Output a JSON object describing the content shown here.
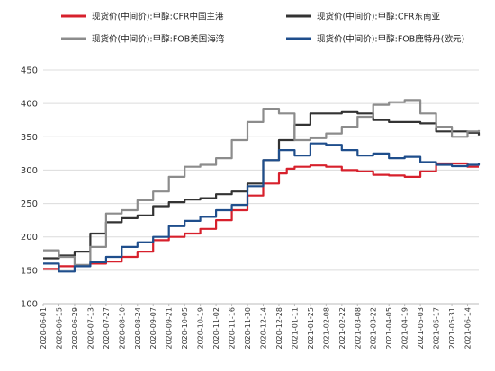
{
  "chart_data": {
    "type": "line",
    "title": "",
    "xlabel": "",
    "ylabel": "",
    "ylim": [
      100,
      450
    ],
    "yticks": [
      100,
      150,
      200,
      250,
      300,
      350,
      400,
      450
    ],
    "grid": "horizontal",
    "legend_position": "top",
    "x_tick_labels": [
      "2020-06-01",
      "2020-06-15",
      "2020-06-29",
      "2020-07-13",
      "2020-07-27",
      "2020-08-10",
      "2020-08-24",
      "2020-09-07",
      "2020-09-21",
      "2020-10-05",
      "2020-10-19",
      "2020-11-02",
      "2020-11-16",
      "2020-11-30",
      "2020-12-14",
      "2020-12-28",
      "2021-01-11",
      "2021-01-25",
      "2021-02-08",
      "2021-02-22",
      "2021-03-08",
      "2021-03-22",
      "2021-04-05",
      "2021-04-19",
      "2021-05-03",
      "2021-05-17",
      "2021-05-31",
      "2021-06-14"
    ],
    "x_range": [
      "2020-06-01",
      "2021-06-24"
    ],
    "series": [
      {
        "name": "现货价(中间价):甲醇:CFR中国主港",
        "color": "#d7202c",
        "points": [
          [
            "2020-06-01",
            152
          ],
          [
            "2020-06-15",
            156
          ],
          [
            "2020-06-29",
            157
          ],
          [
            "2020-07-13",
            160
          ],
          [
            "2020-07-27",
            163
          ],
          [
            "2020-08-10",
            170
          ],
          [
            "2020-08-24",
            178
          ],
          [
            "2020-09-07",
            195
          ],
          [
            "2020-09-21",
            200
          ],
          [
            "2020-10-05",
            205
          ],
          [
            "2020-10-19",
            212
          ],
          [
            "2020-11-02",
            225
          ],
          [
            "2020-11-16",
            240
          ],
          [
            "2020-11-30",
            262
          ],
          [
            "2020-12-14",
            280
          ],
          [
            "2020-12-28",
            295
          ],
          [
            "2021-01-04",
            302
          ],
          [
            "2021-01-11",
            305
          ],
          [
            "2021-01-25",
            307
          ],
          [
            "2021-02-08",
            305
          ],
          [
            "2021-02-22",
            300
          ],
          [
            "2021-03-08",
            298
          ],
          [
            "2021-03-22",
            293
          ],
          [
            "2021-04-05",
            292
          ],
          [
            "2021-04-19",
            290
          ],
          [
            "2021-05-03",
            298
          ],
          [
            "2021-05-17",
            310
          ],
          [
            "2021-05-31",
            310
          ],
          [
            "2021-06-14",
            305
          ],
          [
            "2021-06-24",
            305
          ]
        ]
      },
      {
        "name": "现货价(中间价):甲醇:CFR东南亚",
        "color": "#333333",
        "points": [
          [
            "2020-06-01",
            168
          ],
          [
            "2020-06-15",
            172
          ],
          [
            "2020-06-29",
            178
          ],
          [
            "2020-07-13",
            205
          ],
          [
            "2020-07-27",
            222
          ],
          [
            "2020-08-10",
            228
          ],
          [
            "2020-08-24",
            232
          ],
          [
            "2020-09-07",
            246
          ],
          [
            "2020-09-21",
            252
          ],
          [
            "2020-10-05",
            256
          ],
          [
            "2020-10-19",
            258
          ],
          [
            "2020-11-02",
            264
          ],
          [
            "2020-11-16",
            268
          ],
          [
            "2020-11-30",
            280
          ],
          [
            "2020-12-14",
            315
          ],
          [
            "2020-12-28",
            345
          ],
          [
            "2021-01-11",
            368
          ],
          [
            "2021-01-25",
            385
          ],
          [
            "2021-02-08",
            385
          ],
          [
            "2021-02-22",
            387
          ],
          [
            "2021-03-08",
            385
          ],
          [
            "2021-03-22",
            375
          ],
          [
            "2021-04-05",
            372
          ],
          [
            "2021-04-19",
            372
          ],
          [
            "2021-05-03",
            370
          ],
          [
            "2021-05-17",
            358
          ],
          [
            "2021-05-31",
            358
          ],
          [
            "2021-06-14",
            356
          ],
          [
            "2021-06-24",
            352
          ]
        ]
      },
      {
        "name": "现货价(中间价):甲醇:FOB美国海湾",
        "color": "#8c8c8c",
        "points": [
          [
            "2020-06-01",
            180
          ],
          [
            "2020-06-15",
            170
          ],
          [
            "2020-06-29",
            158
          ],
          [
            "2020-07-13",
            185
          ],
          [
            "2020-07-27",
            235
          ],
          [
            "2020-08-10",
            240
          ],
          [
            "2020-08-24",
            255
          ],
          [
            "2020-09-07",
            268
          ],
          [
            "2020-09-21",
            290
          ],
          [
            "2020-10-05",
            305
          ],
          [
            "2020-10-19",
            308
          ],
          [
            "2020-11-02",
            318
          ],
          [
            "2020-11-16",
            345
          ],
          [
            "2020-11-30",
            372
          ],
          [
            "2020-12-14",
            392
          ],
          [
            "2020-12-28",
            385
          ],
          [
            "2021-01-11",
            345
          ],
          [
            "2021-01-25",
            348
          ],
          [
            "2021-02-08",
            355
          ],
          [
            "2021-02-22",
            365
          ],
          [
            "2021-03-08",
            380
          ],
          [
            "2021-03-22",
            398
          ],
          [
            "2021-04-05",
            402
          ],
          [
            "2021-04-19",
            405
          ],
          [
            "2021-05-03",
            385
          ],
          [
            "2021-05-17",
            365
          ],
          [
            "2021-05-31",
            350
          ],
          [
            "2021-06-14",
            358
          ],
          [
            "2021-06-24",
            360
          ]
        ]
      },
      {
        "name": "现货价(中间价):甲醇:FOB鹿特丹(欧元)",
        "color": "#1f4e8c",
        "points": [
          [
            "2020-06-01",
            160
          ],
          [
            "2020-06-15",
            148
          ],
          [
            "2020-06-29",
            156
          ],
          [
            "2020-07-13",
            162
          ],
          [
            "2020-07-27",
            170
          ],
          [
            "2020-08-10",
            185
          ],
          [
            "2020-08-24",
            192
          ],
          [
            "2020-09-07",
            200
          ],
          [
            "2020-09-21",
            216
          ],
          [
            "2020-10-05",
            224
          ],
          [
            "2020-10-19",
            230
          ],
          [
            "2020-11-02",
            240
          ],
          [
            "2020-11-16",
            248
          ],
          [
            "2020-11-30",
            276
          ],
          [
            "2020-12-14",
            315
          ],
          [
            "2020-12-28",
            330
          ],
          [
            "2021-01-11",
            322
          ],
          [
            "2021-01-25",
            340
          ],
          [
            "2021-02-08",
            338
          ],
          [
            "2021-02-22",
            330
          ],
          [
            "2021-03-08",
            322
          ],
          [
            "2021-03-22",
            325
          ],
          [
            "2021-04-05",
            318
          ],
          [
            "2021-04-19",
            320
          ],
          [
            "2021-05-03",
            312
          ],
          [
            "2021-05-17",
            308
          ],
          [
            "2021-05-31",
            306
          ],
          [
            "2021-06-14",
            308
          ],
          [
            "2021-06-24",
            310
          ]
        ]
      }
    ]
  }
}
